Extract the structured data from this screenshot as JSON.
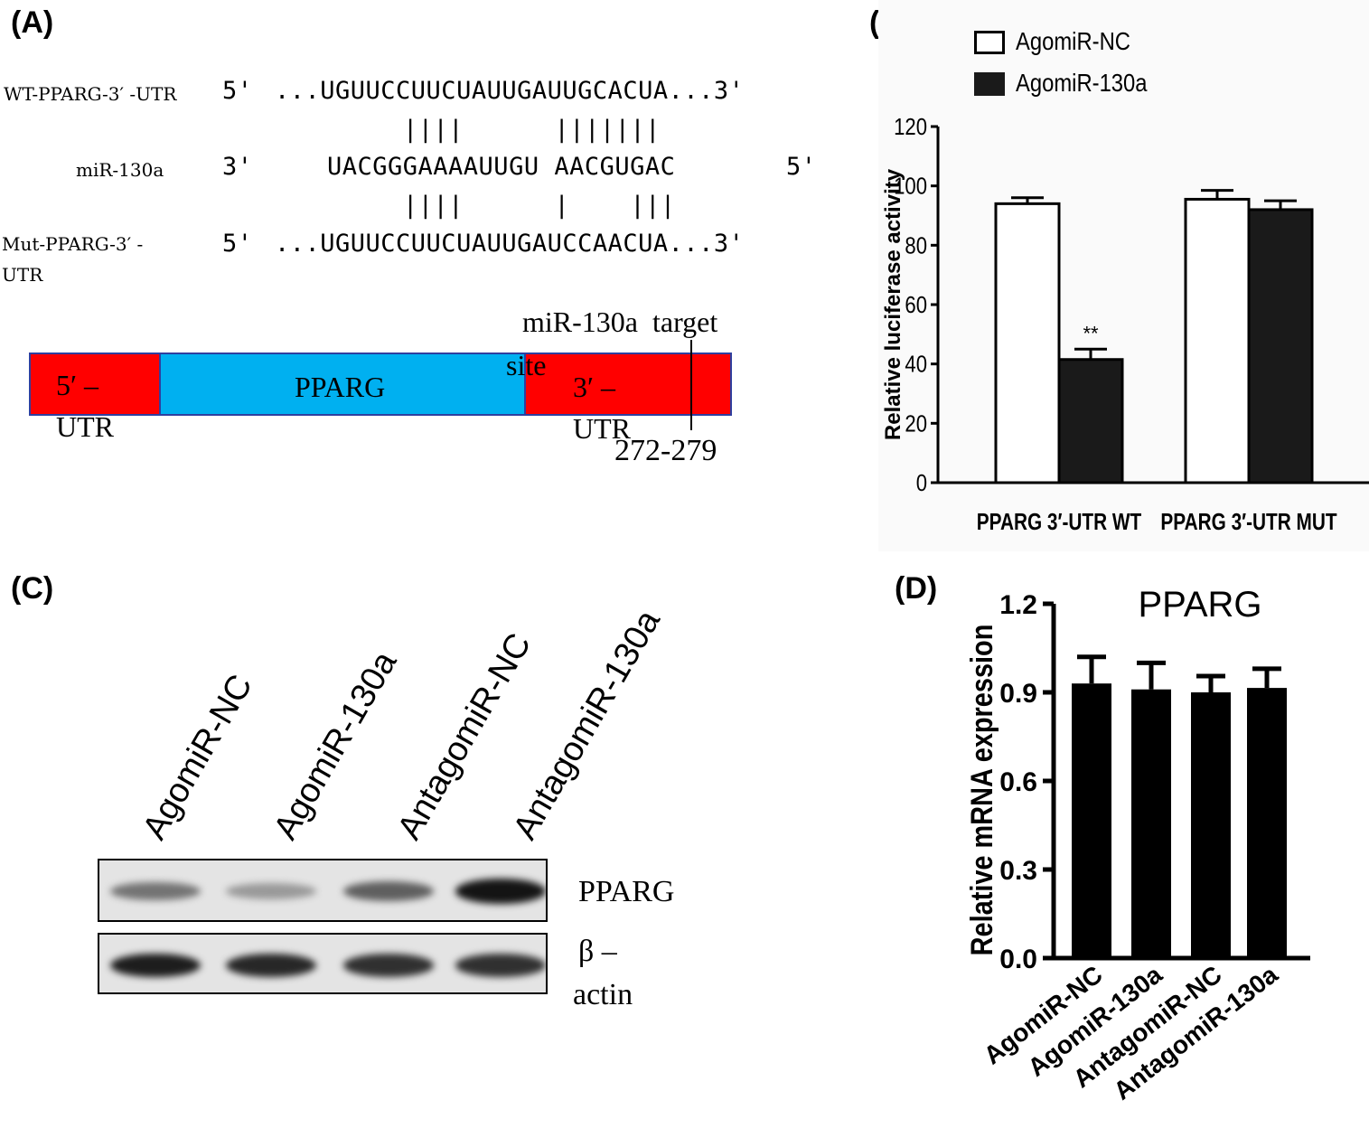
{
  "panels": {
    "A": {
      "label": "(A)",
      "rows": [
        {
          "name": "WT-PPARG-3′ -UTR",
          "prime_left": "5'",
          "seq": "...UGUUCCUUCUAUUGAUUGCACUA...3'"
        },
        {
          "name": "miR-130a",
          "prime_left": "3'",
          "seq": "UACGGGAAAAUUGU AACGUGAC",
          "prime_right": "5'"
        },
        {
          "name_line1": "Mut-PPARG-3′ -",
          "name_line2": "UTR",
          "prime_left": "5'",
          "seq": "...UGUUCCUUCUAUUGAUCCAACUA...3'"
        }
      ],
      "pairing_upper": "||||      |||||||",
      "pairing_lower": "||||      |    |||",
      "schematic": {
        "utr5_line1": "5′ –",
        "utr5_line2": "UTR",
        "cds": "PPARG",
        "utr3_line1": "3′ –",
        "utr3_line2": "UTR",
        "target_line1": "miR-130a  target",
        "target_line2": "site",
        "position": "272-279",
        "colors": {
          "utr": "#ff0000",
          "cds": "#00b0f0"
        }
      }
    },
    "B": {
      "label": "(B)",
      "legend": [
        {
          "name": "AgomiR-NC",
          "fill": "#ffffff"
        },
        {
          "name": "AgomiR-130a",
          "fill": "#1a1a1a"
        }
      ],
      "significance": "**"
    },
    "C": {
      "label": "(C)",
      "lanes": [
        "AgomiR-NC",
        "AgomiR-130a",
        "AntagomiR-NC",
        "AntagomiR-130a"
      ],
      "blots": [
        {
          "name": "PPARG",
          "intensities": [
            0.45,
            0.25,
            0.55,
            0.95
          ]
        },
        {
          "name_line1": "β –",
          "name_line2": "actin",
          "intensities": [
            0.9,
            0.85,
            0.8,
            0.8
          ]
        }
      ]
    },
    "D": {
      "label": "(D)"
    }
  },
  "chart_data": [
    {
      "type": "bar",
      "panel": "B",
      "categories": [
        "PPARG 3′-UTR WT",
        "PPARG 3′-UTR MUT"
      ],
      "series": [
        {
          "name": "AgomiR-NC",
          "values": [
            94,
            95.5
          ],
          "errors": [
            2,
            3
          ]
        },
        {
          "name": "AgomiR-130a",
          "values": [
            41.5,
            92
          ],
          "errors": [
            3.5,
            3
          ]
        }
      ],
      "ylabel": "Relative luciferase activity",
      "ylim": [
        0,
        120
      ],
      "yticks": [
        0,
        20,
        40,
        60,
        80,
        100,
        120
      ],
      "legend": "top-left"
    },
    {
      "type": "bar",
      "panel": "D",
      "title": "PPARG",
      "categories": [
        "AgomiR-NC",
        "AgomiR-130a",
        "AntagomiR-NC",
        "AntagomiR-130a"
      ],
      "values": [
        0.93,
        0.91,
        0.9,
        0.915
      ],
      "errors": [
        0.09,
        0.09,
        0.055,
        0.065
      ],
      "ylabel": "Relative mRNA expression",
      "ylim": [
        0,
        1.2
      ],
      "yticks": [
        "0.0",
        "0.3",
        "0.6",
        "0.9",
        "1.2"
      ]
    }
  ]
}
